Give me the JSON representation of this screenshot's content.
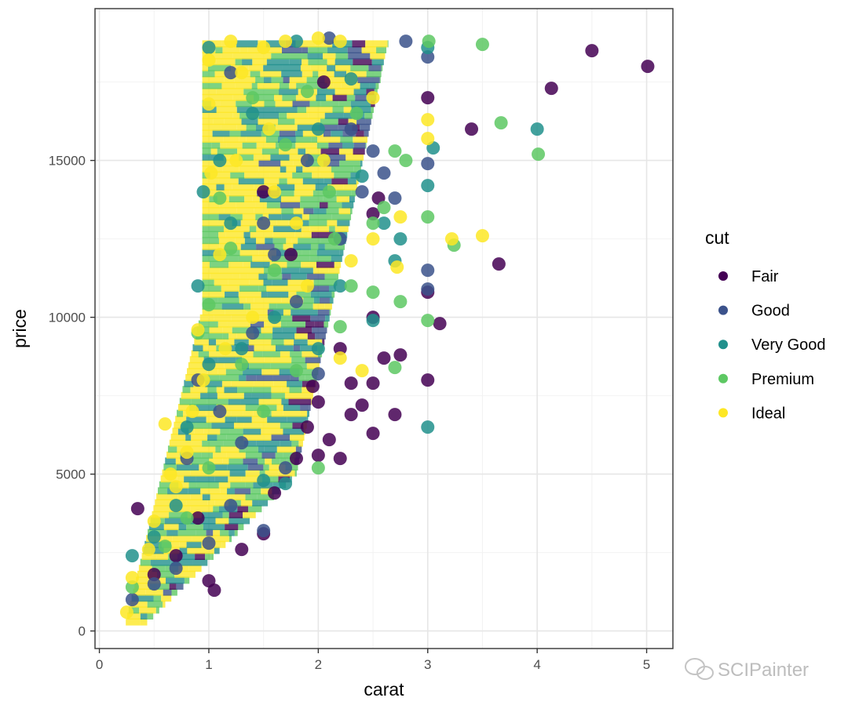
{
  "chart_data": {
    "type": "scatter",
    "xlabel": "carat",
    "ylabel": "price",
    "xlim": [
      -0.04,
      5.24
    ],
    "ylim": [
      -560,
      19840
    ],
    "x_ticks": [
      0,
      1,
      2,
      3,
      4,
      5
    ],
    "x_tick_labels": [
      "0",
      "1",
      "2",
      "3",
      "4",
      "5"
    ],
    "y_ticks": [
      0,
      5000,
      10000,
      15000
    ],
    "y_tick_labels": [
      "0",
      "5000",
      "10000",
      "15000"
    ],
    "grid": true,
    "legend": {
      "title": "cut",
      "position": "right",
      "entries": [
        {
          "name": "Fair",
          "color": "#440154"
        },
        {
          "name": "Good",
          "color": "#3B528B"
        },
        {
          "name": "Very Good",
          "color": "#21908C"
        },
        {
          "name": "Premium",
          "color": "#5DC863"
        },
        {
          "name": "Ideal",
          "color": "#FDE725"
        }
      ]
    },
    "series": [
      {
        "name": "Fair",
        "color": "#440154",
        "points": [
          [
            0.35,
            3900
          ],
          [
            0.5,
            1800
          ],
          [
            0.7,
            2400
          ],
          [
            0.9,
            3600
          ],
          [
            1.0,
            1600
          ],
          [
            1.05,
            1300
          ],
          [
            1.3,
            2600
          ],
          [
            1.5,
            3100
          ],
          [
            1.6,
            4400
          ],
          [
            1.8,
            5500
          ],
          [
            1.9,
            6500
          ],
          [
            2.0,
            5600
          ],
          [
            2.1,
            6100
          ],
          [
            2.2,
            5500
          ],
          [
            2.3,
            6900
          ],
          [
            2.4,
            7200
          ],
          [
            2.5,
            6300
          ],
          [
            2.5,
            7900
          ],
          [
            2.5,
            10000
          ],
          [
            2.5,
            13300
          ],
          [
            2.55,
            13800
          ],
          [
            2.6,
            8700
          ],
          [
            2.7,
            6900
          ],
          [
            2.75,
            8800
          ],
          [
            3.0,
            8000
          ],
          [
            3.0,
            10800
          ],
          [
            3.0,
            17000
          ],
          [
            3.11,
            9800
          ],
          [
            3.4,
            16000
          ],
          [
            3.65,
            11700
          ],
          [
            4.13,
            17300
          ],
          [
            4.5,
            18500
          ],
          [
            5.01,
            18000
          ],
          [
            2.05,
            17500
          ],
          [
            1.5,
            14000
          ],
          [
            2.2,
            9000
          ],
          [
            1.75,
            12000
          ],
          [
            2.3,
            7900
          ],
          [
            2.0,
            7300
          ],
          [
            1.95,
            7800
          ]
        ]
      },
      {
        "name": "Good",
        "color": "#3B528B",
        "points": [
          [
            0.3,
            1000
          ],
          [
            0.5,
            1500
          ],
          [
            0.7,
            2000
          ],
          [
            1.0,
            2800
          ],
          [
            1.2,
            4000
          ],
          [
            1.3,
            6000
          ],
          [
            1.5,
            3200
          ],
          [
            1.7,
            5200
          ],
          [
            2.0,
            8200
          ],
          [
            2.2,
            12500
          ],
          [
            2.3,
            16000
          ],
          [
            2.4,
            14000
          ],
          [
            2.5,
            15300
          ],
          [
            2.6,
            14600
          ],
          [
            2.7,
            13800
          ],
          [
            2.8,
            18800
          ],
          [
            3.0,
            18300
          ],
          [
            3.0,
            14900
          ],
          [
            3.0,
            11500
          ],
          [
            3.0,
            10900
          ],
          [
            1.2,
            17800
          ],
          [
            0.9,
            8000
          ],
          [
            1.5,
            13000
          ],
          [
            1.8,
            10500
          ],
          [
            2.1,
            18900
          ],
          [
            0.8,
            5500
          ],
          [
            1.1,
            7000
          ],
          [
            1.4,
            9500
          ],
          [
            1.6,
            12000
          ],
          [
            1.9,
            15000
          ]
        ]
      },
      {
        "name": "Very Good",
        "color": "#21908C",
        "points": [
          [
            0.3,
            2400
          ],
          [
            0.5,
            3000
          ],
          [
            0.7,
            4000
          ],
          [
            0.8,
            6500
          ],
          [
            1.0,
            8500
          ],
          [
            1.0,
            18600
          ],
          [
            1.2,
            13000
          ],
          [
            1.5,
            4800
          ],
          [
            1.7,
            4700
          ],
          [
            2.0,
            9000
          ],
          [
            2.2,
            11000
          ],
          [
            2.5,
            9900
          ],
          [
            2.6,
            13000
          ],
          [
            2.7,
            11800
          ],
          [
            2.75,
            12500
          ],
          [
            3.0,
            6500
          ],
          [
            3.0,
            14200
          ],
          [
            3.0,
            18600
          ],
          [
            3.05,
            15400
          ],
          [
            4.0,
            16000
          ],
          [
            1.4,
            16500
          ],
          [
            1.8,
            18800
          ],
          [
            2.0,
            16000
          ],
          [
            2.3,
            17600
          ],
          [
            0.9,
            11000
          ],
          [
            1.1,
            15000
          ],
          [
            1.6,
            10000
          ],
          [
            2.4,
            14500
          ],
          [
            1.3,
            9000
          ],
          [
            0.95,
            14000
          ]
        ]
      },
      {
        "name": "Premium",
        "color": "#5DC863",
        "points": [
          [
            0.3,
            1400
          ],
          [
            0.6,
            2700
          ],
          [
            0.8,
            3600
          ],
          [
            1.0,
            5200
          ],
          [
            1.0,
            10400
          ],
          [
            1.2,
            12200
          ],
          [
            1.5,
            7000
          ],
          [
            1.8,
            8300
          ],
          [
            2.0,
            5200
          ],
          [
            2.2,
            9700
          ],
          [
            2.3,
            11000
          ],
          [
            2.5,
            10800
          ],
          [
            2.7,
            8400
          ],
          [
            2.75,
            10500
          ],
          [
            2.8,
            15000
          ],
          [
            2.7,
            15300
          ],
          [
            3.0,
            13200
          ],
          [
            3.0,
            9900
          ],
          [
            3.01,
            18800
          ],
          [
            3.24,
            12300
          ],
          [
            3.5,
            18700
          ],
          [
            3.67,
            16200
          ],
          [
            4.01,
            15200
          ],
          [
            2.5,
            13000
          ],
          [
            2.6,
            13500
          ],
          [
            1.4,
            17000
          ],
          [
            1.7,
            15500
          ],
          [
            2.1,
            14000
          ],
          [
            1.1,
            13800
          ],
          [
            0.9,
            9500
          ],
          [
            1.6,
            11500
          ],
          [
            1.9,
            17200
          ],
          [
            2.35,
            16500
          ],
          [
            1.3,
            8500
          ],
          [
            2.15,
            12500
          ]
        ]
      },
      {
        "name": "Ideal",
        "color": "#FDE725",
        "points": [
          [
            0.25,
            600
          ],
          [
            0.3,
            1700
          ],
          [
            0.45,
            2600
          ],
          [
            0.6,
            6600
          ],
          [
            0.7,
            4600
          ],
          [
            0.8,
            5700
          ],
          [
            0.9,
            9600
          ],
          [
            1.0,
            16800
          ],
          [
            1.02,
            14600
          ],
          [
            1.0,
            18200
          ],
          [
            1.2,
            18800
          ],
          [
            1.3,
            17800
          ],
          [
            1.5,
            18600
          ],
          [
            1.7,
            18800
          ],
          [
            2.0,
            18900
          ],
          [
            2.2,
            18800
          ],
          [
            2.5,
            17000
          ],
          [
            2.75,
            13200
          ],
          [
            2.72,
            11600
          ],
          [
            3.0,
            15700
          ],
          [
            3.0,
            16300
          ],
          [
            3.22,
            12500
          ],
          [
            3.5,
            12600
          ],
          [
            2.2,
            8700
          ],
          [
            2.4,
            8300
          ],
          [
            2.5,
            12500
          ],
          [
            1.1,
            12000
          ],
          [
            0.95,
            8000
          ],
          [
            1.25,
            15000
          ],
          [
            1.4,
            10000
          ],
          [
            1.8,
            13000
          ],
          [
            2.05,
            15000
          ],
          [
            1.55,
            16000
          ],
          [
            0.85,
            7000
          ],
          [
            1.15,
            9000
          ],
          [
            2.3,
            11800
          ],
          [
            0.5,
            3500
          ],
          [
            0.65,
            5000
          ],
          [
            1.6,
            14000
          ],
          [
            1.9,
            11000
          ]
        ]
      }
    ]
  },
  "watermark": "SCIPainter"
}
